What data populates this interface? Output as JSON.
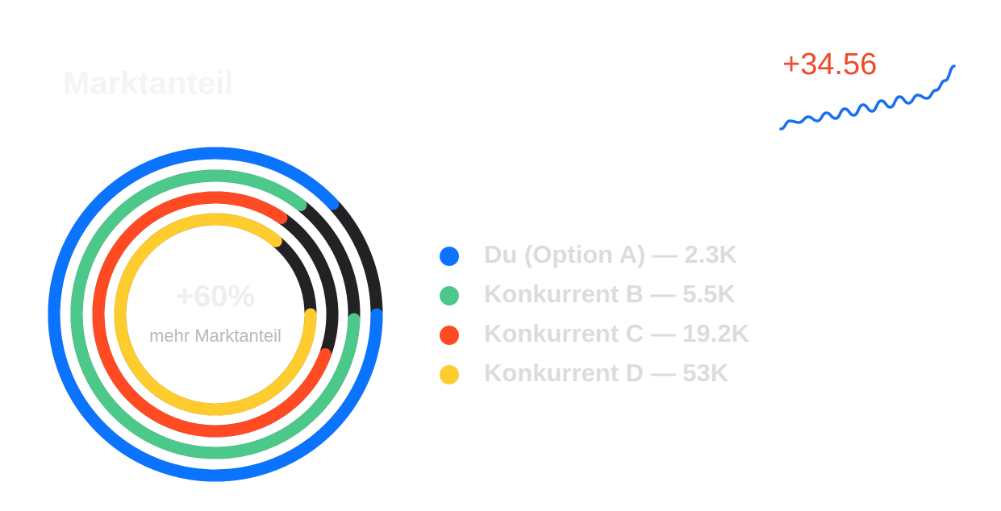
{
  "header": {
    "title": "Marktanteil"
  },
  "center": {
    "value": "+60%",
    "caption": "mehr Marktanteil"
  },
  "rings": [
    {
      "legend": "Du (Option A) — 2.3K",
      "color": "#0a74ff",
      "fill_percent": 88
    },
    {
      "legend": "Konkurrent B — 5.5K",
      "color": "#4cc98a",
      "fill_percent": 85
    },
    {
      "legend": "Konkurrent C — 19.2K",
      "color": "#ff4a24",
      "fill_percent": 79
    },
    {
      "legend": "Konkurrent D — 53K",
      "color": "#ffcc2e",
      "fill_percent": 86
    }
  ],
  "track_color": "#222124",
  "sparkline": {
    "label": "+34.56",
    "color": "#1a6ff0",
    "values": [
      40,
      50,
      48,
      55,
      50,
      60,
      53,
      65,
      57,
      70,
      62,
      75,
      67,
      80,
      72,
      82,
      78,
      88,
      100,
      118
    ]
  }
}
